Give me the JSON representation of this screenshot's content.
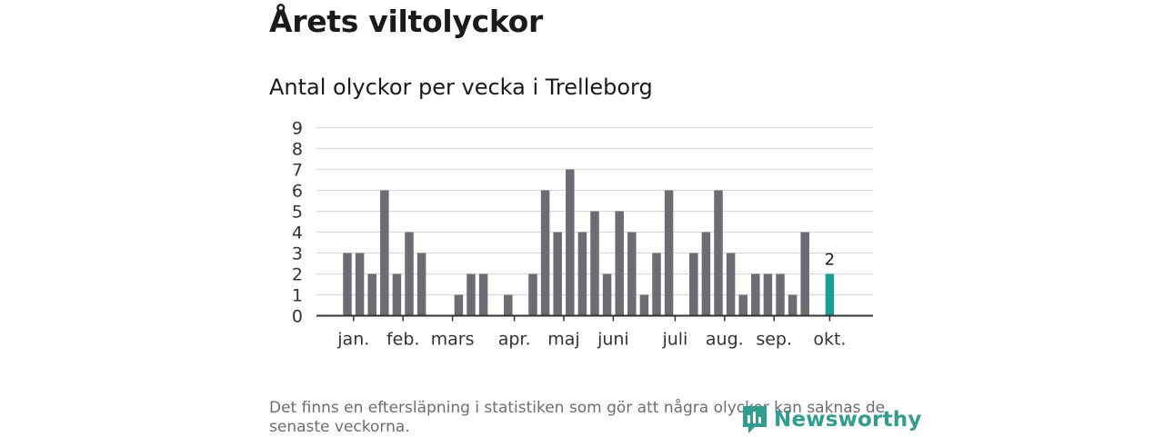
{
  "title": "Årets viltolyckor",
  "subtitle": "Antal olyckor per vecka i Trelleborg",
  "note": "Det finns en eftersläpning i statistiken som gör att några olyckor kan saknas de senaste veckorna.",
  "logo": {
    "text": "Newsworthy"
  },
  "colors": {
    "bar": "#6d6c72",
    "highlight": "#1a9e8f",
    "grid": "#d9d9d9",
    "axis": "#333333"
  },
  "chart_data": {
    "type": "bar",
    "title": "Antal olyckor per vecka i Trelleborg",
    "xlabel": "",
    "ylabel": "",
    "ylim": [
      0,
      9
    ],
    "yticks": [
      0,
      1,
      2,
      3,
      4,
      5,
      6,
      7,
      8,
      9
    ],
    "weeks": [
      1,
      2,
      3,
      4,
      5,
      6,
      7,
      8,
      9,
      10,
      11,
      12,
      13,
      14,
      15,
      16,
      17,
      18,
      19,
      20,
      21,
      22,
      23,
      24,
      25,
      26,
      27,
      28,
      29,
      30,
      31,
      32,
      33,
      34,
      35,
      36,
      37,
      38,
      39,
      40,
      41
    ],
    "values": [
      3,
      3,
      2,
      6,
      2,
      4,
      3,
      0,
      0,
      1,
      2,
      2,
      0,
      1,
      0,
      2,
      6,
      4,
      7,
      4,
      5,
      2,
      5,
      4,
      1,
      3,
      6,
      0,
      3,
      4,
      6,
      3,
      1,
      2,
      2,
      2,
      1,
      4,
      0,
      2,
      0
    ],
    "highlight_week": 40,
    "highlight_label": "2",
    "month_labels": [
      {
        "label": "jan.",
        "week": 1.5
      },
      {
        "label": "feb.",
        "week": 5.5
      },
      {
        "label": "mars",
        "week": 9.5
      },
      {
        "label": "apr.",
        "week": 14.5
      },
      {
        "label": "maj",
        "week": 18.5
      },
      {
        "label": "juni",
        "week": 22.5
      },
      {
        "label": "juli",
        "week": 27.5
      },
      {
        "label": "aug.",
        "week": 31.5
      },
      {
        "label": "sep.",
        "week": 35.5
      },
      {
        "label": "okt.",
        "week": 40
      }
    ]
  }
}
